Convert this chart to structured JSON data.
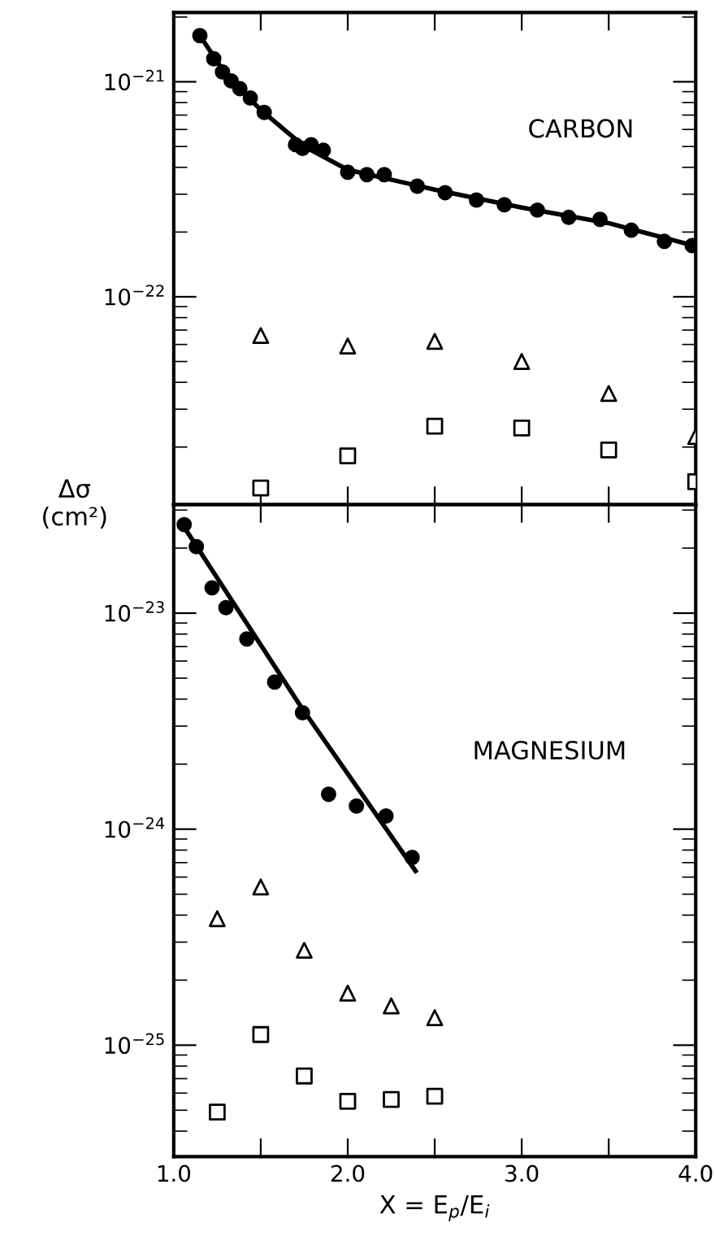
{
  "chart_data": [
    {
      "type": "scatter",
      "ylabel": "Δσ\n(cm²)",
      "annotations": [
        "CARBON"
      ],
      "log": "y",
      "xlim": [
        1.0,
        4.0
      ],
      "ylim": [
        1.08e-23,
        2.1e-21
      ],
      "xticks": [
        {
          "value": 1.5,
          "label": null
        },
        {
          "value": 2.0,
          "label": null
        },
        {
          "value": 2.5,
          "label": null
        },
        {
          "value": 3.0,
          "label": null
        },
        {
          "value": 3.5,
          "label": null
        }
      ],
      "yticks": [
        {
          "value": 1e-22,
          "label": "10$^{−22}$"
        },
        {
          "value": 1e-21,
          "label": "10$^{−21}$"
        }
      ],
      "tick_labels": "y",
      "series": [
        {
          "type": "scatter",
          "marker": "circle",
          "color": "#000000",
          "x": [
            1.15,
            1.23,
            1.28,
            1.33,
            1.38,
            1.44,
            1.52,
            1.7,
            1.74,
            1.79,
            1.86,
            2.0,
            2.11,
            2.21,
            2.4,
            2.56,
            2.74,
            2.9,
            3.09,
            3.27,
            3.45,
            3.63,
            3.82,
            3.98
          ],
          "values": [
            1.64e-21,
            1.28e-21,
            1.11e-21,
            1.01e-21,
            9.3e-22,
            8.4e-22,
            7.2e-22,
            5.1e-22,
            4.9e-22,
            5.1e-22,
            4.8e-22,
            3.8e-22,
            3.7e-22,
            3.7e-22,
            3.27e-22,
            3.05e-22,
            2.82e-22,
            2.68e-22,
            2.53e-22,
            2.34e-22,
            2.29e-22,
            2.04e-22,
            1.81e-22,
            1.73e-22
          ]
        },
        {
          "type": "line",
          "marker": "none",
          "line_style": "solid",
          "color": "#000000",
          "x": [
            1.15,
            1.3,
            1.5,
            1.75,
            2.0,
            2.5,
            3.0,
            3.5,
            4.0
          ],
          "values": [
            1.64e-21,
            1.08e-21,
            7.4e-22,
            5e-22,
            3.9e-22,
            3.15e-22,
            2.6e-22,
            2.2e-22,
            1.72e-22
          ]
        },
        {
          "type": "scatter",
          "marker": "triangle",
          "color": "#000000",
          "x": [
            1.5,
            2.0,
            2.5,
            3.0,
            3.5,
            4.0
          ],
          "values": [
            6.6e-23,
            5.9e-23,
            6.2e-23,
            5e-23,
            3.55e-23,
            2.24e-23
          ]
        },
        {
          "type": "scatter",
          "marker": "square",
          "color": "#000000",
          "x": [
            1.5,
            2.0,
            2.5,
            3.0,
            3.5,
            4.0
          ],
          "values": [
            1.29e-23,
            1.82e-23,
            2.5e-23,
            2.45e-23,
            1.94e-23,
            1.38e-23
          ]
        }
      ]
    },
    {
      "type": "scatter",
      "xlabel": "X = E$_{p}$/E$_{i}$",
      "annotations": [
        "MAGNESIUM"
      ],
      "log": "y",
      "xlim": [
        1.0,
        4.0
      ],
      "ylim": [
        3.05e-26,
        3.18e-23
      ],
      "xticks": [
        {
          "value": 1.0,
          "label": "1.0"
        },
        {
          "value": 1.5,
          "label": null
        },
        {
          "value": 2.0,
          "label": "2.0"
        },
        {
          "value": 2.5,
          "label": null
        },
        {
          "value": 3.0,
          "label": "3.0"
        },
        {
          "value": 3.5,
          "label": null
        },
        {
          "value": 4.0,
          "label": "4.0"
        }
      ],
      "yticks": [
        {
          "value": 1e-25,
          "label": "10$^{−25}$"
        },
        {
          "value": 1e-24,
          "label": "10$^{−24}$"
        },
        {
          "value": 1e-23,
          "label": "10$^{−23}$"
        }
      ],
      "series": [
        {
          "type": "scatter",
          "marker": "circle",
          "color": "#000000",
          "x": [
            1.06,
            1.13,
            1.22,
            1.3,
            1.42,
            1.58,
            1.74,
            1.89,
            2.05,
            2.22,
            2.37
          ],
          "values": [
            2.57e-23,
            2.03e-23,
            1.31e-23,
            1.06e-23,
            7.6e-24,
            4.8e-24,
            3.46e-24,
            1.45e-24,
            1.28e-24,
            1.15e-24,
            7.4e-25
          ]
        },
        {
          "type": "line",
          "marker": "none",
          "line_style": "solid",
          "color": "#000000",
          "x": [
            1.06,
            1.73,
            2.39
          ],
          "values": [
            2.5e-23,
            3.7e-24,
            6.4e-25
          ]
        },
        {
          "type": "scatter",
          "marker": "triangle",
          "color": "#000000",
          "x": [
            1.25,
            1.5,
            1.75,
            2.0,
            2.25,
            2.5
          ],
          "values": [
            3.85e-25,
            5.4e-25,
            2.75e-25,
            1.74e-25,
            1.52e-25,
            1.34e-25
          ]
        },
        {
          "type": "scatter",
          "marker": "square",
          "color": "#000000",
          "x": [
            1.25,
            1.5,
            1.75,
            2.0,
            2.25,
            2.5
          ],
          "values": [
            4.9e-26,
            1.12e-25,
            7.2e-26,
            5.5e-26,
            5.6e-26,
            5.8e-26
          ]
        }
      ]
    }
  ]
}
